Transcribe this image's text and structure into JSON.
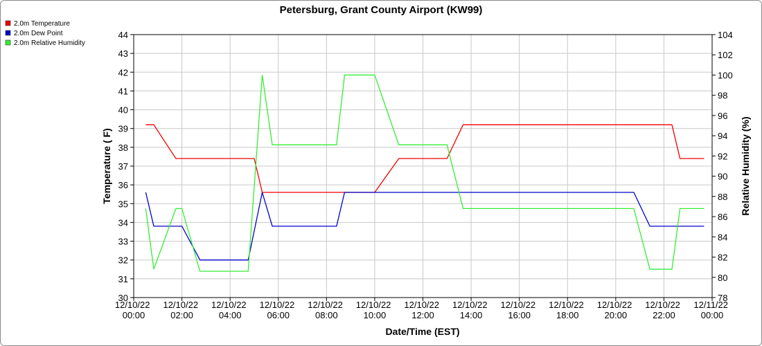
{
  "chart_data": {
    "type": "line",
    "title": "Petersburg, Grant County Airport (KW99)",
    "x_label": "Date/Time (EST)",
    "y_label": "Temperature ( F)",
    "y2_label": "Relative Humidity (%)",
    "grid": true,
    "legend": "top-left",
    "xlim": [
      "12/10/22 00:00",
      "12/11/22 00:00"
    ],
    "xticks": [
      "12/10/22 00:00",
      "12/10/22 02:00",
      "12/10/22 04:00",
      "12/10/22 06:00",
      "12/10/22 08:00",
      "12/10/22 10:00",
      "12/10/22 12:00",
      "12/10/22 14:00",
      "12/10/22 16:00",
      "12/10/22 18:00",
      "12/10/22 20:00",
      "12/10/22 22:00",
      "12/11/22 00:00"
    ],
    "ylim": [
      30,
      44
    ],
    "yticks": [
      30,
      31,
      32,
      33,
      34,
      35,
      36,
      37,
      38,
      39,
      40,
      41,
      42,
      43,
      44
    ],
    "y2lim": [
      78,
      104
    ],
    "y2ticks": [
      78,
      80,
      82,
      84,
      86,
      88,
      90,
      92,
      94,
      96,
      98,
      100,
      102,
      104
    ],
    "series": [
      {
        "name": "2.0m Temperature",
        "color": "#ee0000",
        "x": [
          "12/10/22 00:30",
          "12/10/22 00:50",
          "12/10/22 01:45",
          "12/10/22 05:00",
          "12/10/22 05:20",
          "12/10/22 10:00",
          "12/10/22 11:00",
          "12/10/22 13:00",
          "12/10/22 13:40",
          "12/10/22 22:20",
          "12/10/22 22:40",
          "12/10/22 23:40"
        ],
        "values": [
          39.2,
          39.2,
          37.4,
          37.4,
          35.6,
          35.6,
          37.4,
          37.4,
          39.2,
          39.2,
          37.4,
          37.4
        ]
      },
      {
        "name": "2.0m Dew Point",
        "color": "#0000cc",
        "x": [
          "12/10/22 00:30",
          "12/10/22 00:50",
          "12/10/22 02:00",
          "12/10/22 02:45",
          "12/10/22 04:45",
          "12/10/22 05:20",
          "12/10/22 05:45",
          "12/10/22 08:25",
          "12/10/22 08:45",
          "12/10/22 20:45",
          "12/10/22 21:25",
          "12/10/22 23:40"
        ],
        "values": [
          35.6,
          33.8,
          33.8,
          32.0,
          32.0,
          35.6,
          33.8,
          33.8,
          35.6,
          35.6,
          33.8,
          33.8
        ]
      },
      {
        "name": "2.0m Relative Humidity",
        "color": "#33ee33",
        "axis": "y2",
        "x": [
          "12/10/22 00:30",
          "12/10/22 00:50",
          "12/10/22 01:45",
          "12/10/22 02:00",
          "12/10/22 02:45",
          "12/10/22 04:45",
          "12/10/22 05:20",
          "12/10/22 05:45",
          "12/10/22 08:25",
          "12/10/22 08:45",
          "12/10/22 10:00",
          "12/10/22 11:00",
          "12/10/22 13:00",
          "12/10/22 13:40",
          "12/10/22 20:45",
          "12/10/22 21:25",
          "12/10/22 22:20",
          "12/10/22 22:40",
          "12/10/22 23:40"
        ],
        "values": [
          86.8,
          80.8,
          86.8,
          86.8,
          80.6,
          80.6,
          100.0,
          93.1,
          93.1,
          100.0,
          100.0,
          93.1,
          93.1,
          86.8,
          86.8,
          80.8,
          80.8,
          86.8,
          86.8
        ]
      }
    ]
  }
}
